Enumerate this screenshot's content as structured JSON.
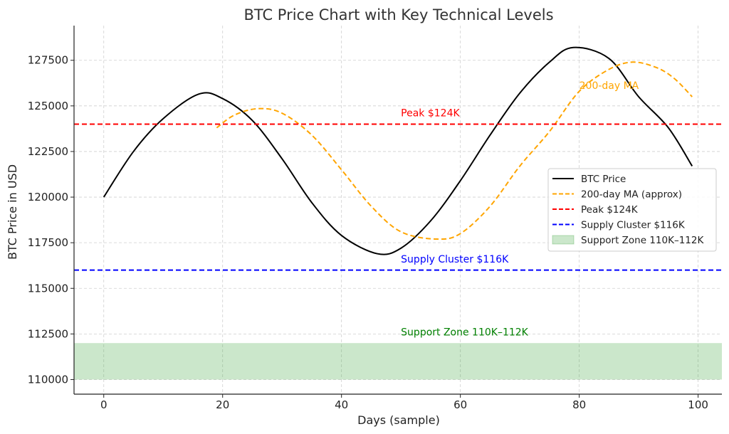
{
  "chart_data": {
    "type": "line",
    "title": "BTC Price Chart with Key Technical Levels",
    "xlabel": "Days (sample)",
    "ylabel": "BTC Price in USD",
    "xlim": [
      -5,
      104
    ],
    "ylim": [
      109200,
      129400
    ],
    "x_ticks": [
      0,
      20,
      40,
      60,
      80,
      100
    ],
    "y_ticks": [
      110000,
      112500,
      115000,
      117500,
      120000,
      122500,
      125000,
      127500
    ],
    "grid": true,
    "legend_position": "center-right",
    "series": [
      {
        "name": "BTC Price",
        "color": "#000000",
        "style": "solid",
        "x": [
          0,
          5,
          10,
          16,
          20,
          25,
          30,
          35,
          40,
          46,
          50,
          55,
          60,
          65,
          70,
          75,
          79,
          85,
          90,
          95,
          99
        ],
        "y": [
          120000,
          122500,
          124300,
          125650,
          125400,
          124200,
          122100,
          119700,
          117900,
          116900,
          117200,
          118700,
          120900,
          123400,
          125700,
          127400,
          128200,
          127600,
          125500,
          123800,
          121700
        ]
      },
      {
        "name": "200-day MA (approx)",
        "color": "#ffa500",
        "style": "dashed",
        "x": [
          19,
          22,
          26,
          30,
          35,
          40,
          45,
          50,
          56,
          60,
          65,
          70,
          75,
          80,
          85,
          89,
          93,
          96,
          99
        ],
        "y": [
          123800,
          124500,
          124850,
          124600,
          123400,
          121500,
          119500,
          118100,
          117700,
          118000,
          119500,
          121700,
          123600,
          125800,
          127000,
          127400,
          127100,
          126500,
          125500
        ]
      }
    ],
    "levels": [
      {
        "name": "Peak $124K",
        "value": 124000,
        "color": "#ff0000",
        "style": "dashed"
      },
      {
        "name": "Supply Cluster $116K",
        "value": 116000,
        "color": "#0000ff",
        "style": "dashed"
      }
    ],
    "zones": [
      {
        "name": "Support Zone 110K–112K",
        "from": 110000,
        "to": 112000,
        "color": "#2e9e2e"
      }
    ],
    "annotations": [
      {
        "text": "Peak $124K",
        "x": 50,
        "y": 124500,
        "color": "#ff0000"
      },
      {
        "text": "Supply Cluster $116K",
        "x": 50,
        "y": 116500,
        "color": "#0000ff"
      },
      {
        "text": "Support Zone 110K–112K",
        "x": 50,
        "y": 112500,
        "color": "#008000"
      },
      {
        "text": "200-day MA",
        "x": 80,
        "y": 126000,
        "color": "#ffa500"
      }
    ]
  }
}
